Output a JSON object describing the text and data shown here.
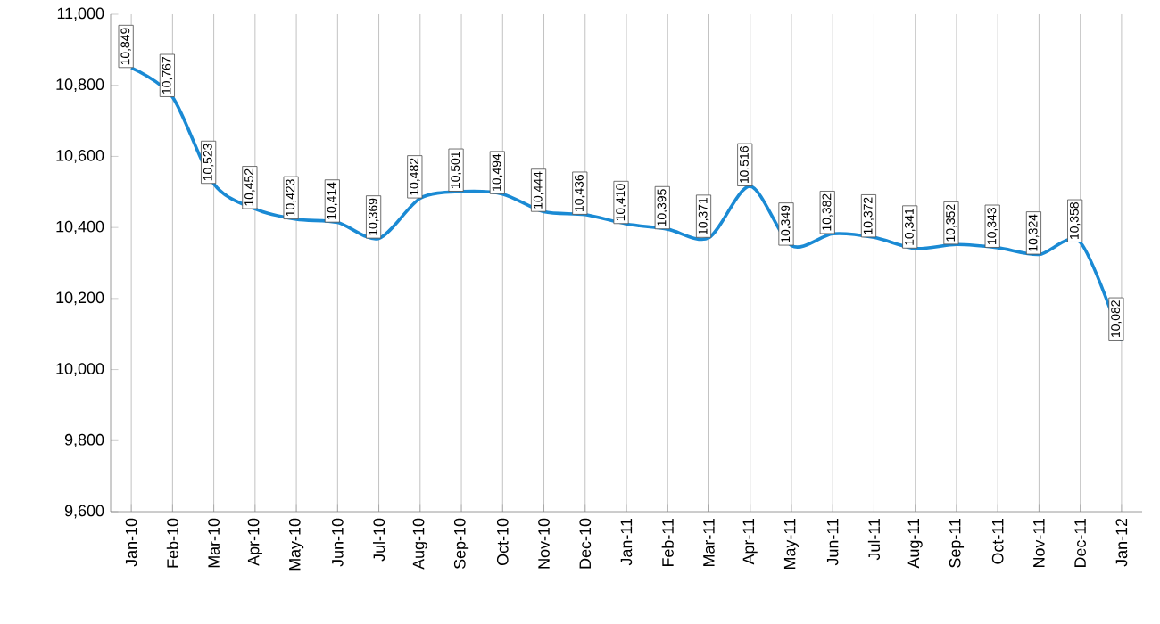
{
  "chart_data": {
    "type": "line",
    "categories": [
      "Jan-10",
      "Feb-10",
      "Mar-10",
      "Apr-10",
      "May-10",
      "Jun-10",
      "Jul-10",
      "Aug-10",
      "Sep-10",
      "Oct-10",
      "Nov-10",
      "Dec-10",
      "Jan-11",
      "Feb-11",
      "Mar-11",
      "Apr-11",
      "May-11",
      "Jun-11",
      "Jul-11",
      "Aug-11",
      "Sep-11",
      "Oct-11",
      "Nov-11",
      "Dec-11",
      "Jan-12"
    ],
    "values": [
      10849,
      10767,
      10523,
      10452,
      10423,
      10414,
      10369,
      10482,
      10501,
      10494,
      10444,
      10436,
      10410,
      10395,
      10371,
      10516,
      10349,
      10382,
      10372,
      10341,
      10352,
      10343,
      10324,
      10358,
      10082
    ],
    "value_labels": [
      "10,849",
      "10,767",
      "10,523",
      "10,452",
      "10,423",
      "10,414",
      "10,369",
      "10,482",
      "10,501",
      "10,494",
      "10,444",
      "10,436",
      "10,410",
      "10,395",
      "10,371",
      "10,516",
      "10,349",
      "10,382",
      "10,372",
      "10,341",
      "10,352",
      "10,343",
      "10,324",
      "10,358",
      "10,082"
    ],
    "color": "#1a8ad4",
    "ylim": [
      9600,
      11000
    ],
    "yticks": [
      {
        "value": 9600,
        "label": "9,600"
      },
      {
        "value": 9800,
        "label": "9,800"
      },
      {
        "value": 10000,
        "label": "10,000"
      },
      {
        "value": 10200,
        "label": "10,200"
      },
      {
        "value": 10400,
        "label": "10,400"
      },
      {
        "value": 10600,
        "label": "10,600"
      },
      {
        "value": 10800,
        "label": "10,800"
      },
      {
        "value": 11000,
        "label": "11,000"
      }
    ],
    "grid": "x",
    "marker": "none",
    "line_style": "solid"
  }
}
